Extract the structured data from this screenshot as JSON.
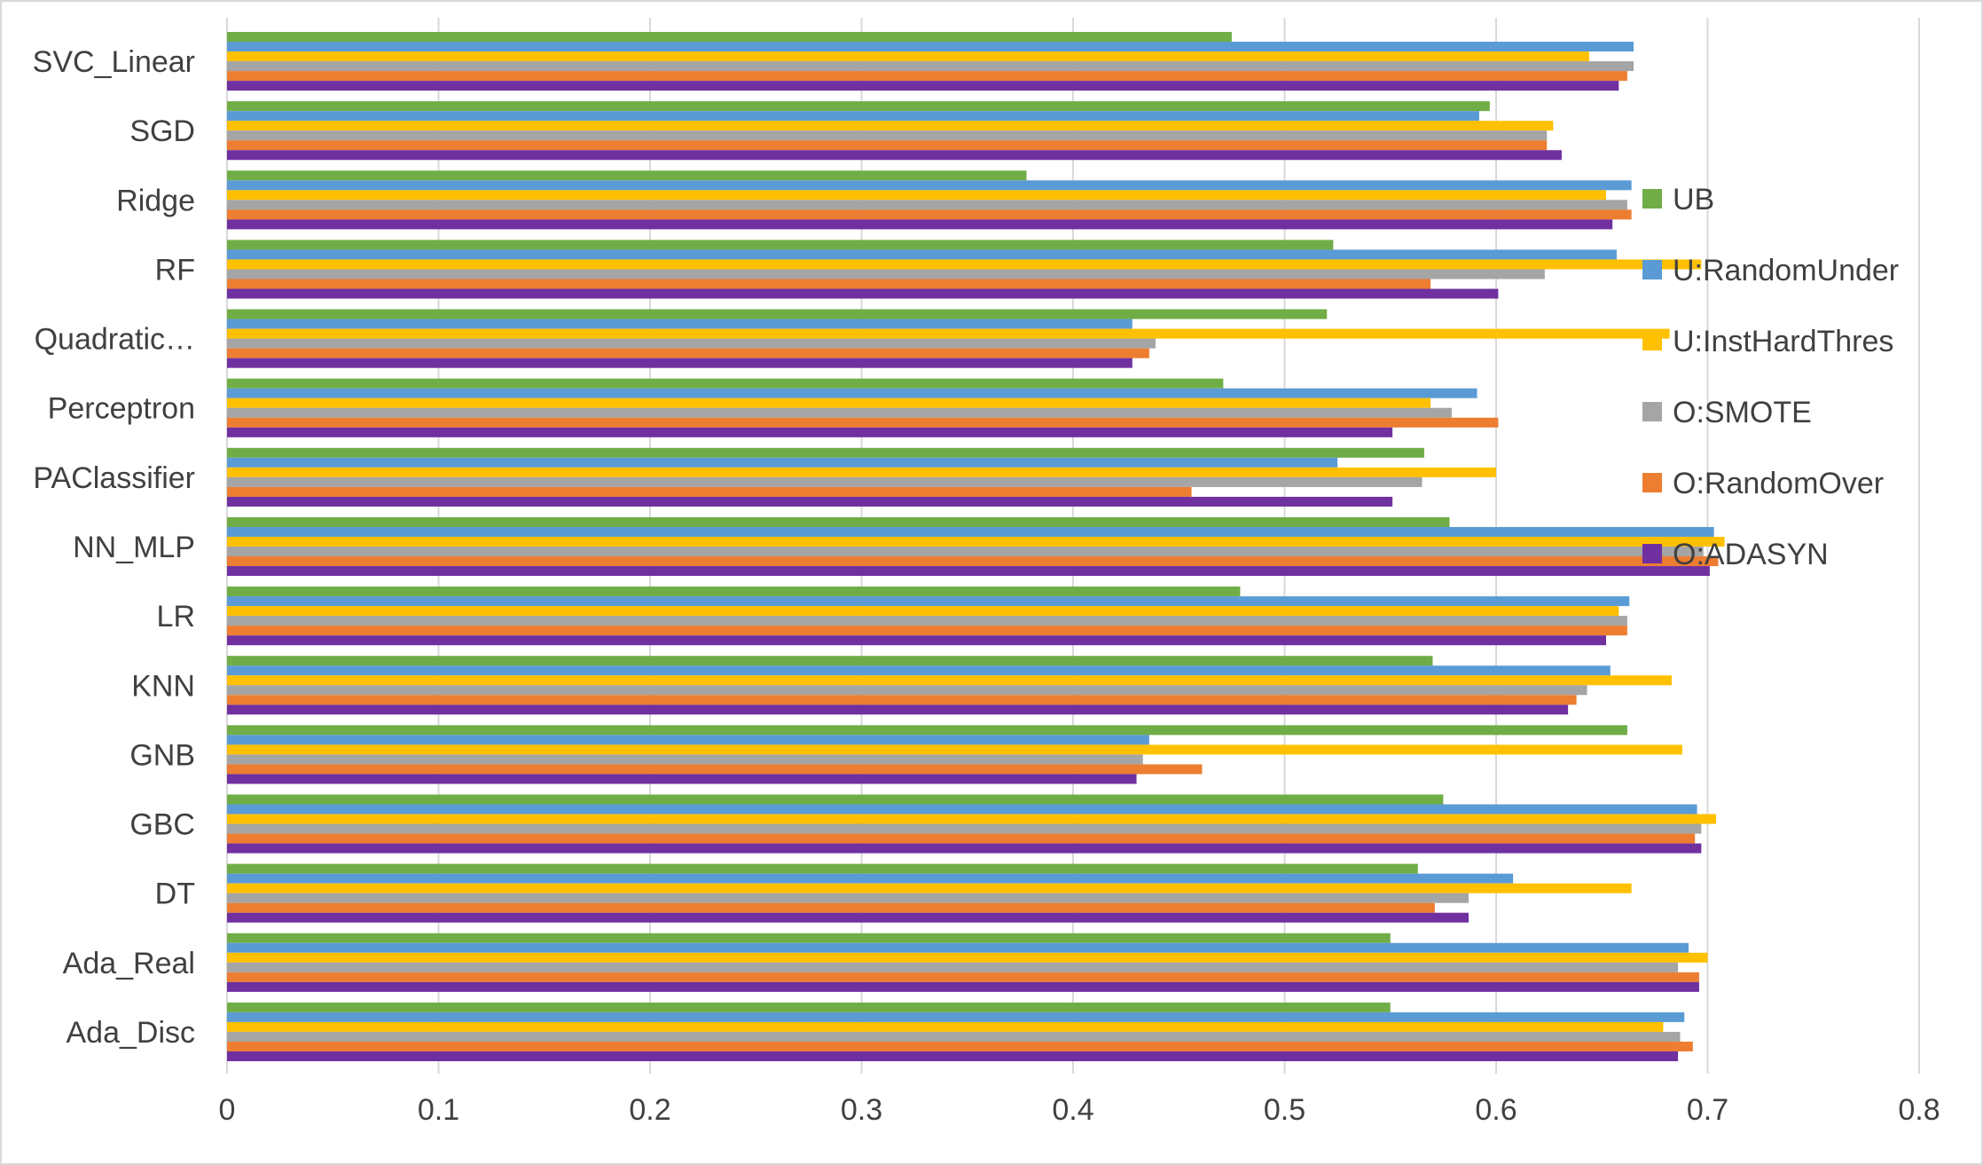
{
  "chart_data": {
    "type": "bar",
    "orientation": "horizontal",
    "categories": [
      "SVC_Linear",
      "SGD",
      "Ridge",
      "RF",
      "Quadratic…",
      "Perceptron",
      "PAClassifier",
      "NN_MLP",
      "LR",
      "KNN",
      "GNB",
      "GBC",
      "DT",
      "Ada_Real",
      "Ada_Disc"
    ],
    "series": [
      {
        "name": "UB",
        "color": "#70ad47",
        "values": [
          0.475,
          0.597,
          0.378,
          0.523,
          0.52,
          0.471,
          0.566,
          0.578,
          0.479,
          0.57,
          0.662,
          0.575,
          0.563,
          0.55,
          0.55
        ]
      },
      {
        "name": "U:RandomUnder",
        "color": "#5b9bd5",
        "values": [
          0.665,
          0.592,
          0.664,
          0.657,
          0.428,
          0.591,
          0.525,
          0.703,
          0.663,
          0.654,
          0.436,
          0.695,
          0.608,
          0.691,
          0.689
        ]
      },
      {
        "name": "U:InstHardThres",
        "color": "#ffc000",
        "values": [
          0.644,
          0.627,
          0.652,
          0.697,
          0.682,
          0.569,
          0.6,
          0.708,
          0.658,
          0.683,
          0.688,
          0.704,
          0.664,
          0.7,
          0.679
        ]
      },
      {
        "name": "O:SMOTE",
        "color": "#a5a5a5",
        "values": [
          0.665,
          0.624,
          0.662,
          0.623,
          0.439,
          0.579,
          0.565,
          0.698,
          0.662,
          0.643,
          0.433,
          0.697,
          0.587,
          0.686,
          0.687
        ]
      },
      {
        "name": "O:RandomOver",
        "color": "#ed7d31",
        "values": [
          0.662,
          0.624,
          0.664,
          0.569,
          0.436,
          0.601,
          0.456,
          0.705,
          0.662,
          0.638,
          0.461,
          0.694,
          0.571,
          0.696,
          0.693
        ]
      },
      {
        "name": "O:ADASYN",
        "color": "#7030a0",
        "values": [
          0.658,
          0.631,
          0.655,
          0.601,
          0.428,
          0.551,
          0.551,
          0.701,
          0.652,
          0.634,
          0.43,
          0.697,
          0.587,
          0.696,
          0.686
        ]
      }
    ],
    "xlim": [
      0,
      0.8
    ],
    "x_ticks": [
      "0",
      "0.1",
      "0.2",
      "0.3",
      "0.4",
      "0.5",
      "0.6",
      "0.7",
      "0.8"
    ],
    "grid": true,
    "legend_position": "right"
  }
}
